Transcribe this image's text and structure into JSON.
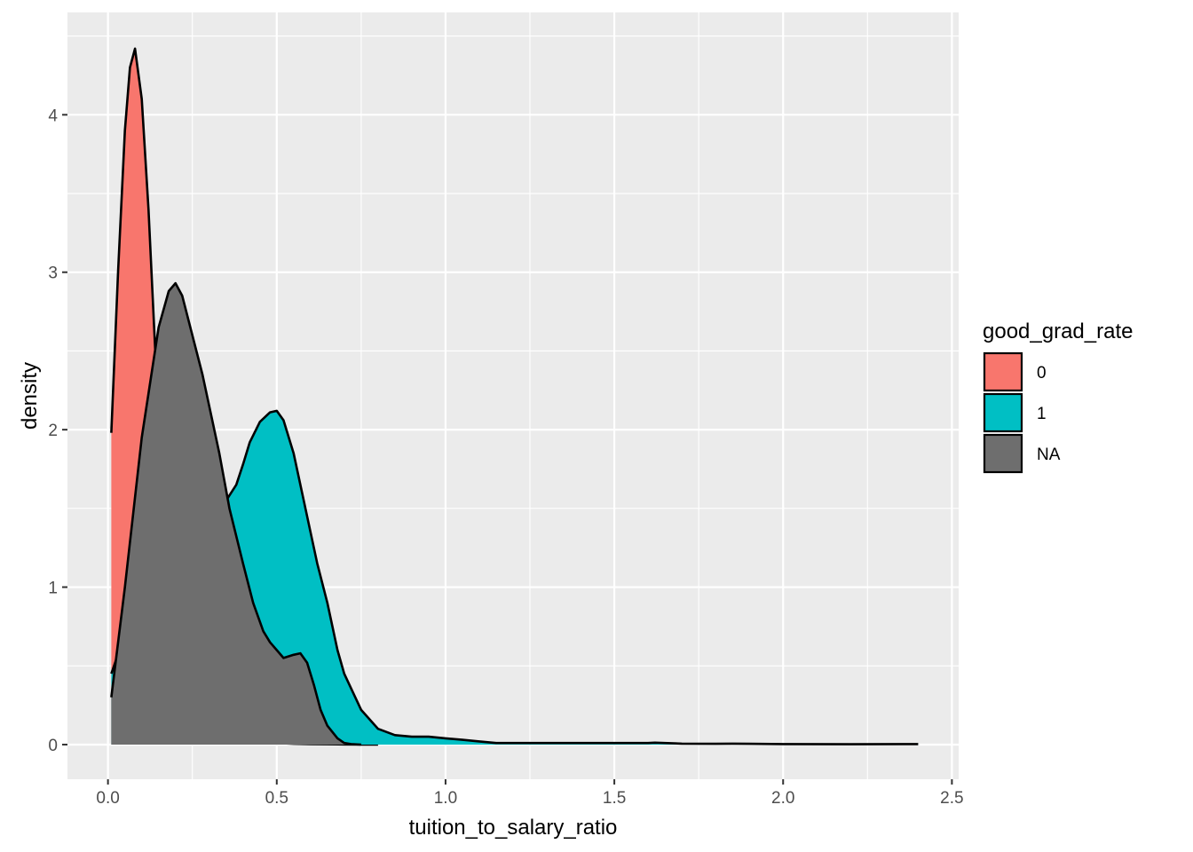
{
  "chart_data": {
    "type": "area",
    "xlabel": "tuition_to_salary_ratio",
    "ylabel": "density",
    "xlim": [
      -0.12,
      2.52
    ],
    "ylim": [
      -0.22,
      4.65
    ],
    "x_ticks": [
      0.0,
      0.5,
      1.0,
      1.5,
      2.0,
      2.5
    ],
    "x_tick_labels": [
      "0.0",
      "0.5",
      "1.0",
      "1.5",
      "2.0",
      "2.5"
    ],
    "y_ticks": [
      0,
      1,
      2,
      3,
      4
    ],
    "y_tick_labels": [
      "0",
      "1",
      "2",
      "3",
      "4"
    ],
    "grid": true,
    "legend": {
      "title": "good_grad_rate",
      "placement": "right",
      "entries": [
        {
          "label": "0",
          "color": "#F8766D"
        },
        {
          "label": "1",
          "color": "#00BFC4"
        },
        {
          "label": "NA",
          "color": "#6E6E6E"
        }
      ]
    },
    "series": [
      {
        "name": "0",
        "color": "#F8766D",
        "x": [
          0.01,
          0.03,
          0.05,
          0.065,
          0.08,
          0.1,
          0.12,
          0.14,
          0.16,
          0.18,
          0.2,
          0.22,
          0.25,
          0.28,
          0.31,
          0.35,
          0.4,
          0.45,
          0.5,
          0.55,
          0.6,
          0.65,
          0.7,
          0.75,
          0.8
        ],
        "y": [
          1.98,
          3.0,
          3.9,
          4.3,
          4.42,
          4.1,
          3.4,
          2.5,
          1.7,
          1.1,
          0.7,
          0.45,
          0.28,
          0.18,
          0.12,
          0.07,
          0.04,
          0.02,
          0.01,
          0.005,
          0.003,
          0.002,
          0.001,
          0.0,
          0.0
        ]
      },
      {
        "name": "1",
        "color": "#00BFC4",
        "x": [
          0.01,
          0.05,
          0.1,
          0.15,
          0.2,
          0.25,
          0.3,
          0.35,
          0.38,
          0.4,
          0.42,
          0.45,
          0.48,
          0.5,
          0.52,
          0.55,
          0.58,
          0.6,
          0.62,
          0.65,
          0.68,
          0.7,
          0.75,
          0.8,
          0.85,
          0.9,
          0.95,
          1.0,
          1.05,
          1.1,
          1.15,
          1.2,
          1.3,
          1.4,
          1.5,
          1.6,
          1.62,
          1.7,
          1.8,
          1.85,
          1.9,
          2.0,
          2.2,
          2.4
        ],
        "y": [
          0.45,
          0.7,
          1.0,
          1.3,
          1.45,
          1.5,
          1.5,
          1.55,
          1.65,
          1.78,
          1.92,
          2.05,
          2.11,
          2.12,
          2.06,
          1.85,
          1.55,
          1.35,
          1.15,
          0.9,
          0.6,
          0.45,
          0.22,
          0.1,
          0.06,
          0.05,
          0.05,
          0.04,
          0.03,
          0.02,
          0.01,
          0.01,
          0.01,
          0.01,
          0.01,
          0.01,
          0.012,
          0.006,
          0.005,
          0.006,
          0.005,
          0.003,
          0.002,
          0.003
        ]
      },
      {
        "name": "NA",
        "color": "#6E6E6E",
        "x": [
          0.01,
          0.05,
          0.1,
          0.15,
          0.18,
          0.2,
          0.22,
          0.25,
          0.28,
          0.3,
          0.33,
          0.36,
          0.4,
          0.43,
          0.46,
          0.48,
          0.5,
          0.52,
          0.55,
          0.57,
          0.59,
          0.61,
          0.63,
          0.65,
          0.68,
          0.7,
          0.72,
          0.75
        ],
        "y": [
          0.3,
          1.0,
          1.95,
          2.65,
          2.88,
          2.93,
          2.85,
          2.6,
          2.35,
          2.15,
          1.85,
          1.5,
          1.15,
          0.9,
          0.72,
          0.65,
          0.6,
          0.55,
          0.57,
          0.58,
          0.52,
          0.38,
          0.22,
          0.12,
          0.04,
          0.01,
          0.003,
          0.0
        ]
      }
    ]
  }
}
